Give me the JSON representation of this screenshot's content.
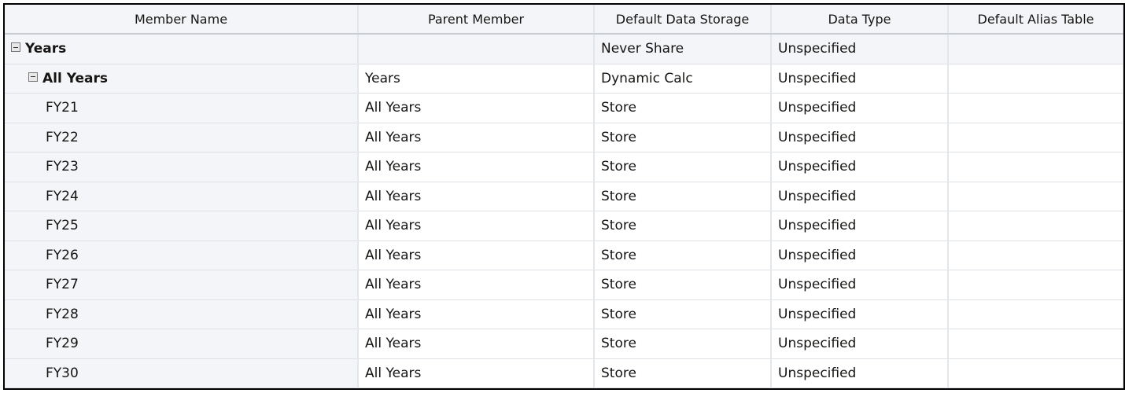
{
  "columns": [
    "Member Name",
    "Parent Member",
    "Default Data Storage",
    "Data Type",
    "Default Alias Table"
  ],
  "rows": [
    {
      "name": "Years",
      "parent": "",
      "storage": "Never Share",
      "type": "Unspecified",
      "alias": "",
      "level": 0,
      "expanded": true,
      "bold": true
    },
    {
      "name": "All Years",
      "parent": "Years",
      "storage": "Dynamic Calc",
      "type": "Unspecified",
      "alias": "",
      "level": 1,
      "expanded": true,
      "bold": true
    },
    {
      "name": "FY21",
      "parent": "All Years",
      "storage": "Store",
      "type": "Unspecified",
      "alias": "",
      "level": 2
    },
    {
      "name": "FY22",
      "parent": "All Years",
      "storage": "Store",
      "type": "Unspecified",
      "alias": "",
      "level": 2
    },
    {
      "name": "FY23",
      "parent": "All Years",
      "storage": "Store",
      "type": "Unspecified",
      "alias": "",
      "level": 2
    },
    {
      "name": "FY24",
      "parent": "All Years",
      "storage": "Store",
      "type": "Unspecified",
      "alias": "",
      "level": 2
    },
    {
      "name": "FY25",
      "parent": "All Years",
      "storage": "Store",
      "type": "Unspecified",
      "alias": "",
      "level": 2
    },
    {
      "name": "FY26",
      "parent": "All Years",
      "storage": "Store",
      "type": "Unspecified",
      "alias": "",
      "level": 2
    },
    {
      "name": "FY27",
      "parent": "All Years",
      "storage": "Store",
      "type": "Unspecified",
      "alias": "",
      "level": 2
    },
    {
      "name": "FY28",
      "parent": "All Years",
      "storage": "Store",
      "type": "Unspecified",
      "alias": "",
      "level": 2
    },
    {
      "name": "FY29",
      "parent": "All Years",
      "storage": "Store",
      "type": "Unspecified",
      "alias": "",
      "level": 2
    },
    {
      "name": "FY30",
      "parent": "All Years",
      "storage": "Store",
      "type": "Unspecified",
      "alias": "",
      "level": 2
    }
  ]
}
